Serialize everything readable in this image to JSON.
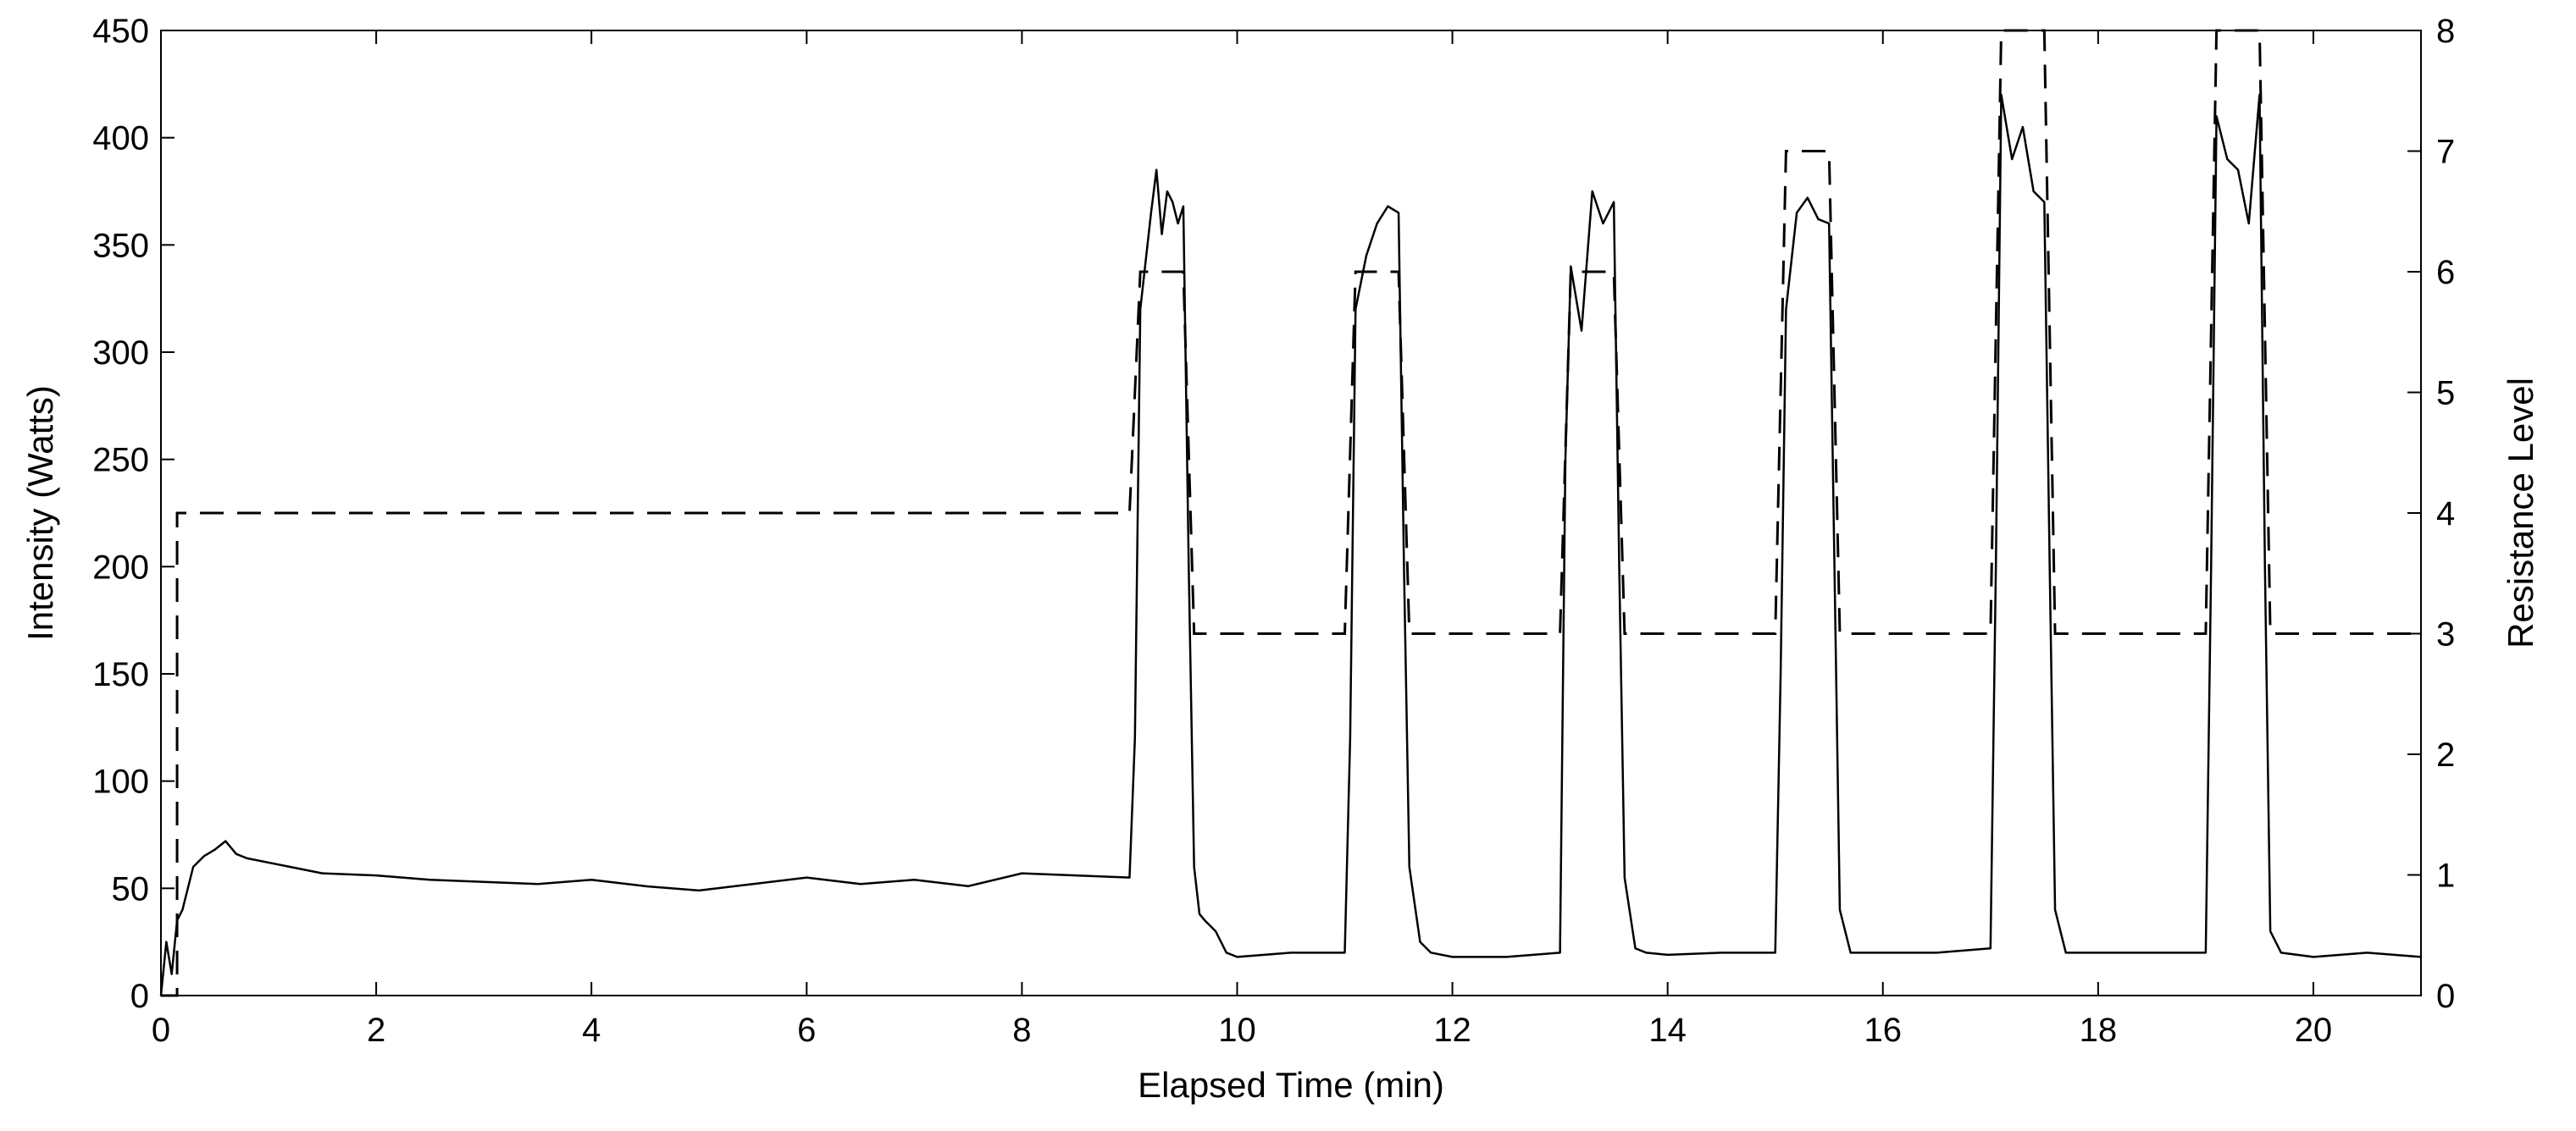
{
  "chart_data": {
    "type": "line",
    "title": "",
    "xlabel": "Elapsed Time (min)",
    "ylabel_left": "Intensity (Watts)",
    "ylabel_right": "Resistance Level",
    "xlim": [
      0,
      21
    ],
    "ylim_left": [
      0,
      450
    ],
    "ylim_right": [
      0,
      8
    ],
    "grid": false,
    "x_ticks": [
      "0",
      "2",
      "4",
      "6",
      "8",
      "10",
      "12",
      "14",
      "16",
      "18",
      "20"
    ],
    "y_left_ticks": [
      "0",
      "50",
      "100",
      "150",
      "200",
      "250",
      "300",
      "350",
      "400",
      "450"
    ],
    "y_right_ticks": [
      "0",
      "1",
      "2",
      "3",
      "4",
      "5",
      "6",
      "7",
      "8"
    ],
    "series": [
      {
        "axis": "left",
        "style": "solid",
        "x": [
          0,
          0.05,
          0.1,
          0.15,
          0.2,
          0.3,
          0.4,
          0.5,
          0.6,
          0.7,
          0.8,
          1.0,
          1.2,
          1.5,
          2.0,
          2.5,
          3.0,
          3.5,
          4.0,
          4.5,
          5.0,
          5.5,
          6.0,
          6.5,
          7.0,
          7.5,
          8.0,
          8.5,
          9.0,
          9.05,
          9.1,
          9.2,
          9.25,
          9.3,
          9.35,
          9.4,
          9.45,
          9.5,
          9.55,
          9.6,
          9.65,
          9.7,
          9.8,
          9.9,
          10.0,
          10.5,
          11.0,
          11.05,
          11.1,
          11.2,
          11.3,
          11.4,
          11.5,
          11.55,
          11.6,
          11.7,
          11.8,
          12.0,
          12.5,
          13.0,
          13.05,
          13.1,
          13.2,
          13.3,
          13.4,
          13.5,
          13.55,
          13.6,
          13.7,
          13.8,
          14.0,
          14.5,
          15.0,
          15.05,
          15.1,
          15.2,
          15.3,
          15.4,
          15.5,
          15.55,
          15.6,
          15.7,
          16.0,
          16.5,
          17.0,
          17.05,
          17.1,
          17.2,
          17.3,
          17.4,
          17.5,
          17.55,
          17.6,
          17.7,
          18.0,
          18.5,
          19.0,
          19.05,
          19.1,
          19.2,
          19.3,
          19.4,
          19.5,
          19.55,
          19.6,
          19.7,
          20.0,
          20.5,
          21.0
        ],
        "values": [
          0,
          25,
          10,
          35,
          40,
          60,
          65,
          68,
          72,
          66,
          64,
          62,
          60,
          57,
          56,
          54,
          53,
          52,
          54,
          51,
          49,
          52,
          55,
          52,
          54,
          51,
          57,
          56,
          55,
          120,
          320,
          365,
          385,
          355,
          375,
          370,
          360,
          368,
          200,
          60,
          38,
          35,
          30,
          20,
          18,
          20,
          20,
          120,
          320,
          345,
          360,
          368,
          365,
          200,
          60,
          25,
          20,
          18,
          18,
          20,
          250,
          340,
          310,
          375,
          360,
          370,
          200,
          55,
          22,
          20,
          19,
          20,
          20,
          150,
          320,
          365,
          372,
          362,
          360,
          200,
          40,
          20,
          20,
          20,
          22,
          200,
          420,
          390,
          405,
          375,
          370,
          200,
          40,
          20,
          20,
          20,
          20,
          200,
          410,
          390,
          385,
          360,
          420,
          200,
          30,
          20,
          18,
          20,
          18
        ]
      },
      {
        "axis": "right",
        "style": "dashed",
        "x": [
          0,
          0.15,
          0.15,
          9.0,
          9.1,
          9.5,
          9.6,
          11.0,
          11.1,
          11.5,
          11.6,
          13.0,
          13.1,
          13.5,
          13.6,
          15.0,
          15.1,
          15.5,
          15.6,
          17.0,
          17.1,
          17.5,
          17.6,
          19.0,
          19.1,
          19.5,
          19.6,
          21.0
        ],
        "values": [
          0,
          0,
          4,
          4,
          6,
          6,
          3,
          3,
          6,
          6,
          3,
          3,
          6,
          6,
          3,
          3,
          7,
          7,
          3,
          3,
          8,
          8,
          3,
          3,
          8,
          8,
          3,
          3
        ]
      }
    ]
  }
}
